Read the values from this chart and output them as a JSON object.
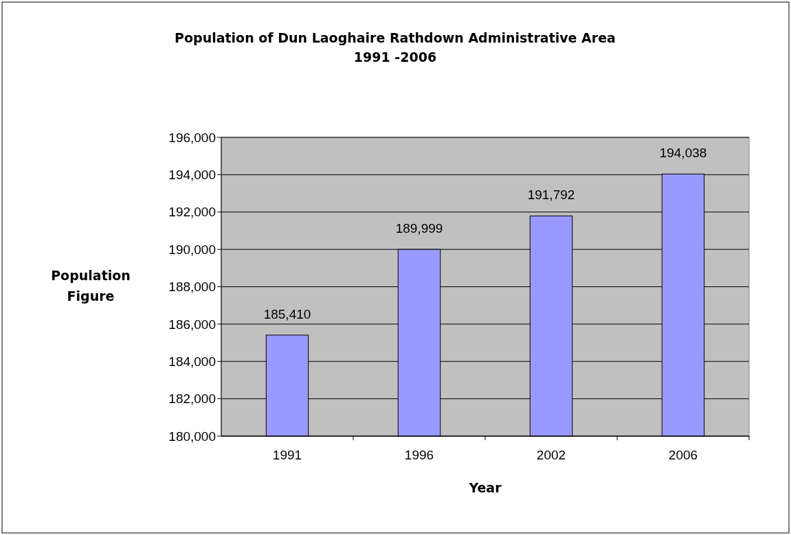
{
  "chart_data": {
    "type": "bar",
    "title": "Population of Dun Laoghaire Rathdown Administrative Area\n1991 -2006",
    "xlabel": "Year",
    "ylabel": "Population\nFigure",
    "categories": [
      "1991",
      "1996",
      "2002",
      "2006"
    ],
    "values": [
      185410,
      189999,
      191792,
      194038
    ],
    "color": "#9999ff",
    "ylim": [
      180000,
      196000
    ],
    "yticks": [
      {
        "value": 180000,
        "label": "180,000"
      },
      {
        "value": 182000,
        "label": "182,000"
      },
      {
        "value": 184000,
        "label": "184,000"
      },
      {
        "value": 186000,
        "label": "186,000"
      },
      {
        "value": 188000,
        "label": "188,000"
      },
      {
        "value": 190000,
        "label": "190,000"
      },
      {
        "value": 192000,
        "label": "192,000"
      },
      {
        "value": 194000,
        "label": "194,000"
      },
      {
        "value": 196000,
        "label": "196,000"
      }
    ],
    "value_labels": [
      "185,410",
      "189,999",
      "191,792",
      "194,038"
    ],
    "grid": "y"
  }
}
